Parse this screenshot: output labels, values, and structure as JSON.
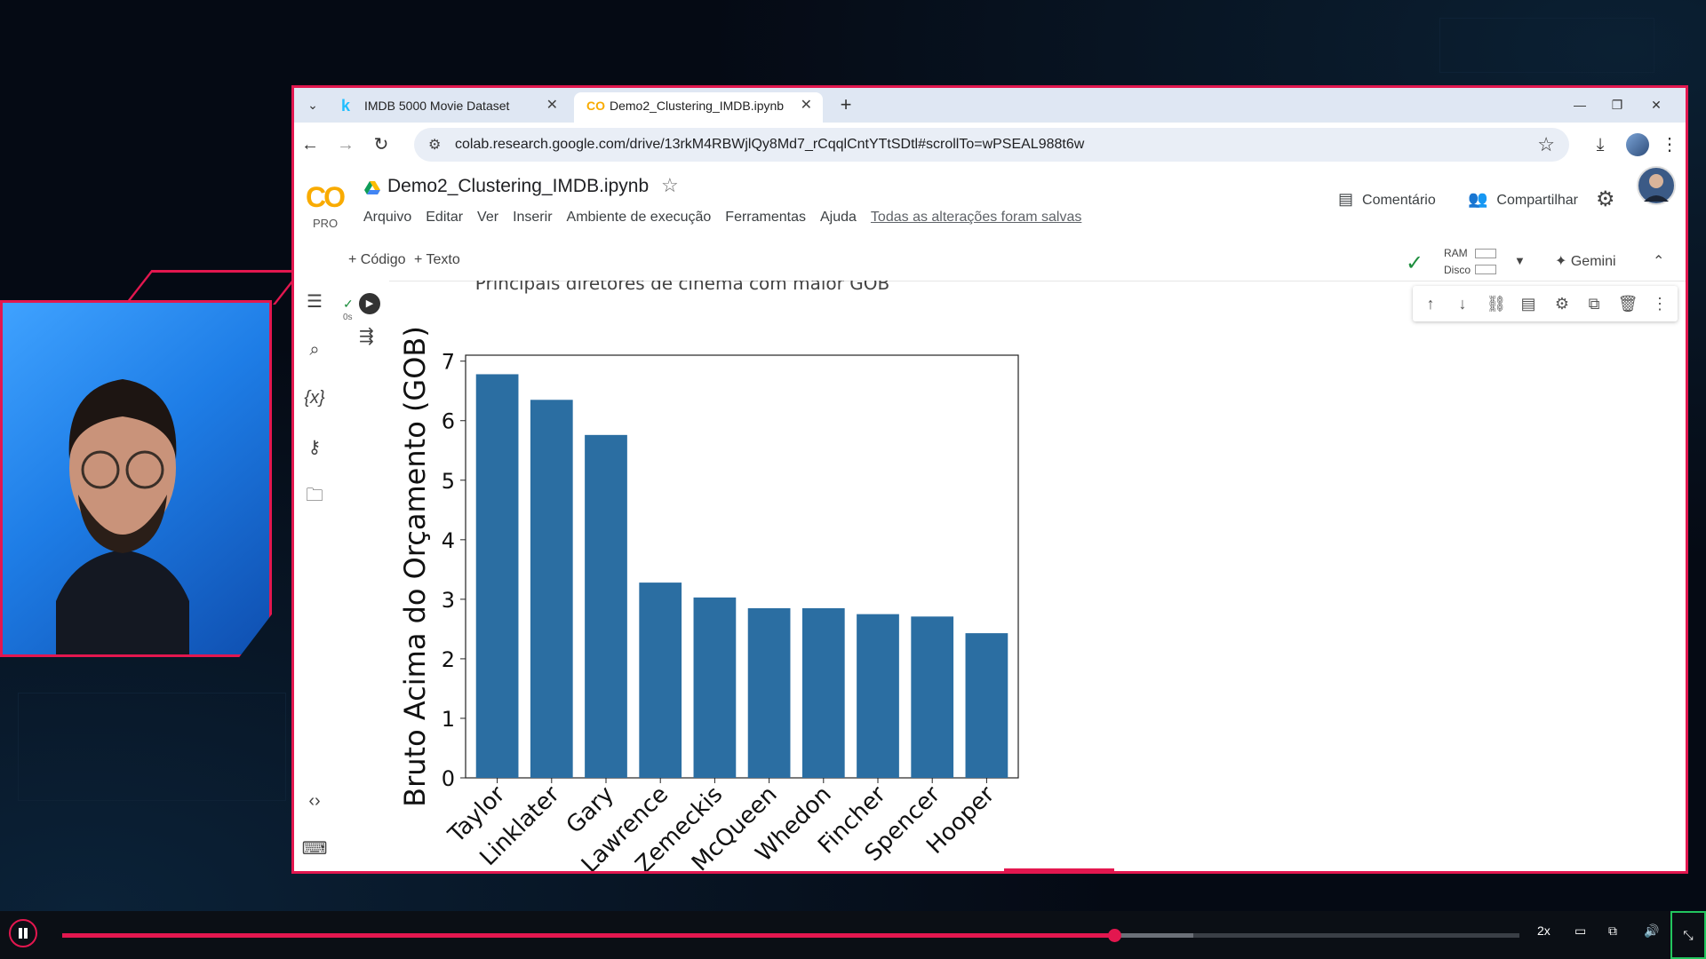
{
  "browser": {
    "tabs": [
      {
        "label": "IMDB 5000 Movie Dataset",
        "favicon": "kaggle-k",
        "active": false
      },
      {
        "label": "Demo2_Clustering_IMDB.ipynb",
        "favicon": "colab-co",
        "active": true
      }
    ],
    "url": "colab.research.google.com/drive/13rkM4RBWjlQy8Md7_rCqqlCntYTtSDtl#scrollTo=wPSEAL988t6w"
  },
  "colab": {
    "logo": "CO",
    "plan": "PRO",
    "notebook_title": "Demo2_Clustering_IMDB.ipynb",
    "menu": [
      "Arquivo",
      "Editar",
      "Ver",
      "Inserir",
      "Ambiente de execução",
      "Ferramentas",
      "Ajuda"
    ],
    "save_status": "Todas as alterações foram salvas",
    "comment_label": "Comentário",
    "share_label": "Compartilhar",
    "toolbar": {
      "add_code": "+ Código",
      "add_text": "+ Texto",
      "ram_label": "RAM",
      "disk_label": "Disco",
      "gemini_label": "Gemini"
    },
    "cell": {
      "exec_time": "0s"
    }
  },
  "chart_data": {
    "type": "bar",
    "title": "Principais diretores de cinema com maior GOB",
    "ylabel": "Bruto Acima do Orçamento (GOB)",
    "xlabel": "",
    "categories": [
      "Taylor",
      "Linklater",
      "Gary",
      "Lawrence",
      "Zemeckis",
      "McQueen",
      "Whedon",
      "Fincher",
      "Spencer",
      "Hooper"
    ],
    "values": [
      6.78,
      6.35,
      5.76,
      3.28,
      3.03,
      2.85,
      2.85,
      2.75,
      2.71,
      2.43
    ],
    "ylim": [
      0,
      7.1
    ],
    "yticks": [
      "0",
      "1",
      "2",
      "3",
      "4",
      "5",
      "6",
      "7"
    ],
    "bar_color": "#2b6ea2",
    "grid": false
  },
  "player": {
    "progress": 0.722,
    "buffered": 0.776,
    "speed": "2x"
  },
  "colors": {
    "accent": "#e3174f",
    "colab_orange": "#f9ab00",
    "check_green": "#1e8e3e"
  }
}
